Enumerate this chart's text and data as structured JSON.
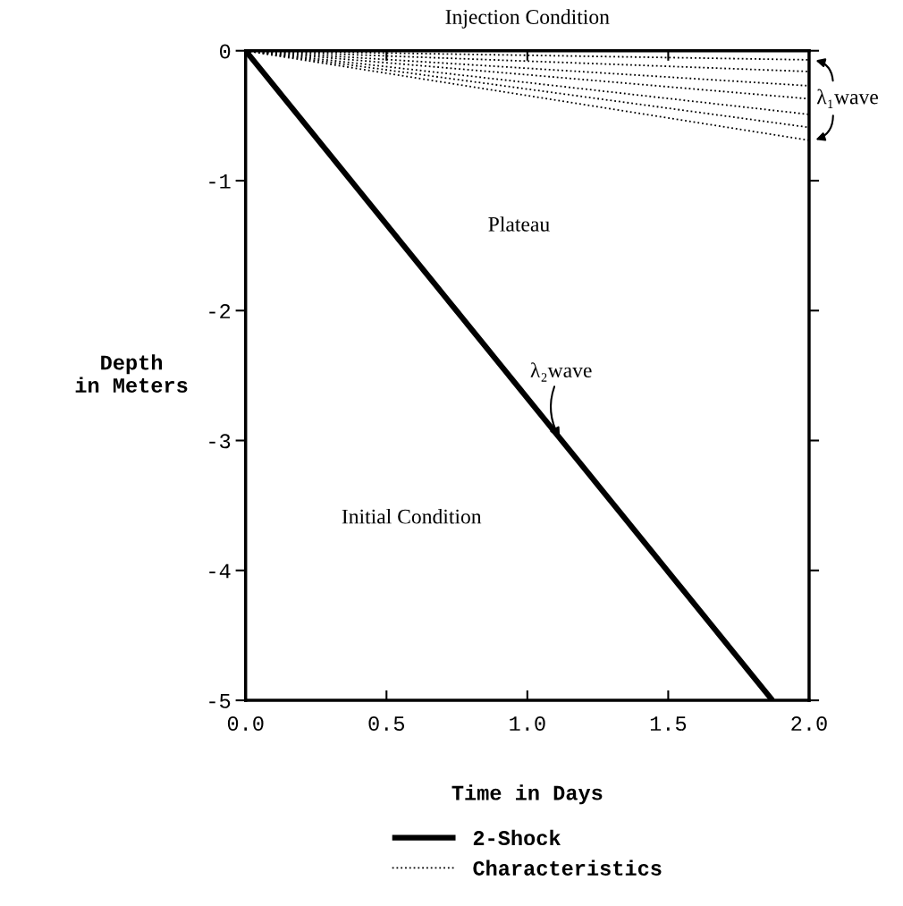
{
  "chart_data": {
    "type": "line",
    "xlabel": "Time in Days",
    "ylabel": "Depth\nin Meters",
    "xlim": [
      0,
      2.0
    ],
    "ylim": [
      -5,
      0
    ],
    "xticks": [
      {
        "value": 0,
        "label": "0.0"
      },
      {
        "value": 0.5,
        "label": "0.5"
      },
      {
        "value": 1.0,
        "label": "1.0"
      },
      {
        "value": 1.5,
        "label": "1.5"
      },
      {
        "value": 2.0,
        "label": "2.0"
      }
    ],
    "yticks": [
      -5,
      -4,
      -3,
      -2,
      -1,
      0
    ],
    "grid": false,
    "legend": "bottom",
    "series": [
      {
        "name": "2-Shock",
        "color": "#000000",
        "line_style": "solid",
        "x": [
          0,
          1.87
        ],
        "values": [
          0,
          -5
        ]
      },
      {
        "name": "Characteristics",
        "color": "#000000",
        "line_style": "dotted",
        "x": [
          0,
          2.0
        ],
        "values": [
          0,
          -0.07
        ]
      },
      {
        "color": "#000000",
        "line_style": "dotted",
        "x": [
          0,
          2.0
        ],
        "values": [
          0,
          -0.16
        ]
      },
      {
        "color": "#000000",
        "line_style": "dotted",
        "x": [
          0,
          2.0
        ],
        "values": [
          0,
          -0.27
        ]
      },
      {
        "color": "#000000",
        "line_style": "dotted",
        "x": [
          0,
          2.0
        ],
        "values": [
          0,
          -0.37
        ]
      },
      {
        "color": "#000000",
        "line_style": "dotted",
        "x": [
          0,
          2.0
        ],
        "values": [
          0,
          -0.49
        ]
      },
      {
        "color": "#000000",
        "line_style": "dotted",
        "x": [
          0,
          2.0
        ],
        "values": [
          0,
          -0.59
        ]
      },
      {
        "color": "#000000",
        "line_style": "dotted",
        "x": [
          0,
          2.0
        ],
        "values": [
          0,
          -0.69
        ]
      }
    ],
    "annotations": [
      {
        "text": "Injection Condition",
        "x": 1.0,
        "y": 0
      },
      "Plateau",
      "Initial Condition",
      {
        "text": "λ₂wave",
        "x": 1.12,
        "y": -3.0
      },
      {
        "text": "λ₁wave",
        "x": 2.0,
        "y": -0.37
      }
    ]
  }
}
